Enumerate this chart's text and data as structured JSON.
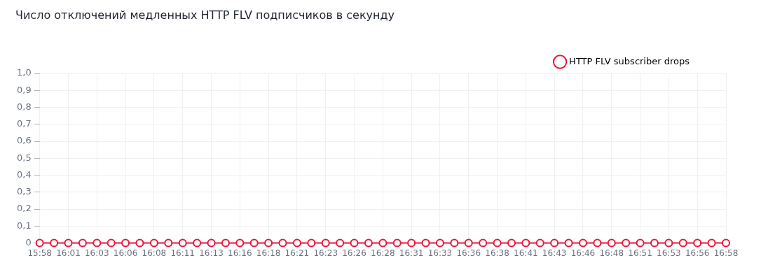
{
  "chart_data": {
    "type": "line",
    "title": "Число отключений медленных HTTP FLV подписчиков в секунду",
    "categories": [
      "15:58",
      null,
      "16:01",
      null,
      "16:03",
      null,
      "16:06",
      null,
      "16:08",
      null,
      "16:11",
      null,
      "16:13",
      null,
      "16:16",
      null,
      "16:18",
      null,
      "16:21",
      null,
      "16:23",
      null,
      "16:26",
      null,
      "16:28",
      null,
      "16:31",
      null,
      "16:33",
      null,
      "16:36",
      null,
      "16:38",
      null,
      "16:41",
      null,
      "16:43",
      null,
      "16:46",
      null,
      "16:48",
      null,
      "16:51",
      null,
      "16:53",
      null,
      "16:56",
      null,
      "16:58"
    ],
    "series": [
      {
        "name": "HTTP FLV subscriber drops",
        "color": "#e8173a",
        "values": [
          0,
          0,
          0,
          0,
          0,
          0,
          0,
          0,
          0,
          0,
          0,
          0,
          0,
          0,
          0,
          0,
          0,
          0,
          0,
          0,
          0,
          0,
          0,
          0,
          0,
          0,
          0,
          0,
          0,
          0,
          0,
          0,
          0,
          0,
          0,
          0,
          0,
          0,
          0,
          0,
          0,
          0,
          0,
          0,
          0,
          0,
          0,
          0,
          0
        ]
      }
    ],
    "ylim": [
      0,
      1
    ],
    "yticks": [
      0,
      {
        "value": 0.1,
        "label": "0,1"
      },
      {
        "value": 0.2,
        "label": "0,2"
      },
      {
        "value": 0.3,
        "label": "0,3"
      },
      {
        "value": 0.4,
        "label": "0,4"
      },
      {
        "value": 0.5,
        "label": "0,5"
      },
      {
        "value": 0.6,
        "label": "0,6"
      },
      {
        "value": 0.7,
        "label": "0,7"
      },
      {
        "value": 0.8,
        "label": "0,8"
      },
      {
        "value": 0.9,
        "label": "0,9"
      },
      {
        "value": 1,
        "label": "1,0"
      }
    ],
    "grid": true,
    "legend": "top right",
    "marker": "circle",
    "line_style": "solid"
  }
}
